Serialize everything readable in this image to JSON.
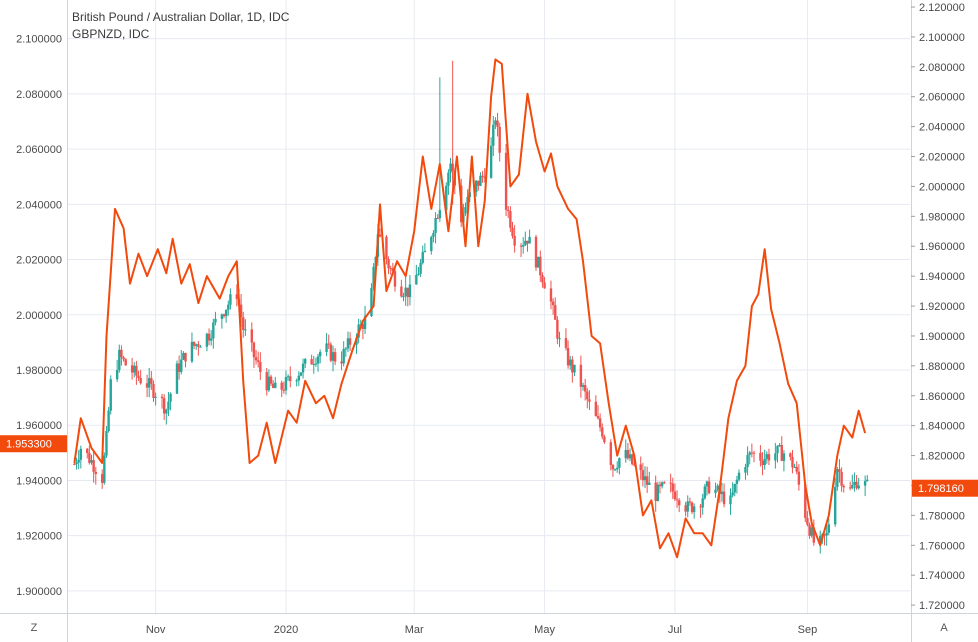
{
  "header": {
    "title": "British Pound / Australian Dollar, 1D, IDC",
    "subtitle": "GBPNZD, IDC"
  },
  "corner_buttons": {
    "left": "Z",
    "right": "A"
  },
  "colors": {
    "candle_up": "#26a69a",
    "candle_down": "#ef5350",
    "compare_line": "#f24a0d",
    "grid": "#e6eaf0",
    "axis_text": "#4a4a4a",
    "badge_left": "#f24a0d",
    "badge_right": "#f24a0d"
  },
  "chart_data": {
    "type": "line",
    "title": "British Pound / Australian Dollar, 1D, IDC",
    "time_labels": [
      "Nov",
      "2020",
      "Mar",
      "May",
      "Jul",
      "Sep"
    ],
    "left_axis": {
      "ticks": [
        "1.900000",
        "1.920000",
        "1.940000",
        "1.960000",
        "1.980000",
        "2.000000",
        "2.020000",
        "2.040000",
        "2.060000",
        "2.080000",
        "2.100000"
      ],
      "range": [
        1.892,
        2.114
      ]
    },
    "right_axis": {
      "ticks": [
        "1.720000",
        "1.740000",
        "1.760000",
        "1.780000",
        "1.800000",
        "1.820000",
        "1.840000",
        "1.860000",
        "1.880000",
        "1.900000",
        "1.920000",
        "1.940000",
        "1.960000",
        "1.980000",
        "2.000000",
        "2.020000",
        "2.040000",
        "2.060000",
        "2.080000",
        "2.100000",
        "2.120000"
      ],
      "range": [
        1.7147,
        2.1247
      ]
    },
    "last_price_left": {
      "label": "1.953300",
      "value": 1.9533
    },
    "last_price_right": {
      "label": "1.798160",
      "value": 1.79816
    },
    "series": [
      {
        "name": "British Pound / Australian Dollar",
        "style": "candles",
        "axis": "left",
        "close_path": [
          [
            "2019-09-24",
            1.946
          ],
          [
            "2019-09-27",
            1.952
          ],
          [
            "2019-10-02",
            1.947
          ],
          [
            "2019-10-07",
            1.941
          ],
          [
            "2019-10-09",
            1.955
          ],
          [
            "2019-10-11",
            1.975
          ],
          [
            "2019-10-15",
            1.985
          ],
          [
            "2019-10-18",
            1.982
          ],
          [
            "2019-10-23",
            1.978
          ],
          [
            "2019-10-28",
            1.975
          ],
          [
            "2019-11-01",
            1.972
          ],
          [
            "2019-11-06",
            1.966
          ],
          [
            "2019-11-11",
            1.98
          ],
          [
            "2019-11-16",
            1.987
          ],
          [
            "2019-11-21",
            1.99
          ],
          [
            "2019-11-26",
            1.993
          ],
          [
            "2019-12-01",
            2.0
          ],
          [
            "2019-12-06",
            2.005
          ],
          [
            "2019-12-09",
            2.008
          ],
          [
            "2019-12-12",
            1.995
          ],
          [
            "2019-12-17",
            1.985
          ],
          [
            "2019-12-22",
            1.976
          ],
          [
            "2019-12-28",
            1.972
          ],
          [
            "2020-01-05",
            1.978
          ],
          [
            "2020-01-12",
            1.983
          ],
          [
            "2020-01-19",
            1.988
          ],
          [
            "2020-01-26",
            1.983
          ],
          [
            "2020-02-02",
            1.993
          ],
          [
            "2020-02-09",
            2.0
          ],
          [
            "2020-02-13",
            2.03
          ],
          [
            "2020-02-18",
            2.018
          ],
          [
            "2020-02-23",
            2.01
          ],
          [
            "2020-02-28",
            2.008
          ],
          [
            "2020-03-06",
            2.022
          ],
          [
            "2020-03-13",
            2.04
          ],
          [
            "2020-03-18",
            2.055
          ],
          [
            "2020-03-23",
            2.035
          ],
          [
            "2020-03-28",
            2.045
          ],
          [
            "2020-04-02",
            2.05
          ],
          [
            "2020-04-06",
            2.06
          ],
          [
            "2020-04-08",
            2.072
          ],
          [
            "2020-04-13",
            2.04
          ],
          [
            "2020-04-18",
            2.025
          ],
          [
            "2020-04-23",
            2.028
          ],
          [
            "2020-04-28",
            2.018
          ],
          [
            "2020-05-03",
            2.008
          ],
          [
            "2020-05-08",
            1.99
          ],
          [
            "2020-05-13",
            1.982
          ],
          [
            "2020-05-18",
            1.975
          ],
          [
            "2020-05-23",
            1.965
          ],
          [
            "2020-05-28",
            1.958
          ],
          [
            "2020-06-02",
            1.945
          ],
          [
            "2020-06-07",
            1.95
          ],
          [
            "2020-06-12",
            1.945
          ],
          [
            "2020-06-17",
            1.94
          ],
          [
            "2020-06-22",
            1.935
          ],
          [
            "2020-06-27",
            1.938
          ],
          [
            "2020-07-02",
            1.935
          ],
          [
            "2020-07-07",
            1.93
          ],
          [
            "2020-07-12",
            1.932
          ],
          [
            "2020-07-17",
            1.938
          ],
          [
            "2020-07-22",
            1.935
          ],
          [
            "2020-07-27",
            1.932
          ],
          [
            "2020-08-01",
            1.945
          ],
          [
            "2020-08-06",
            1.95
          ],
          [
            "2020-08-11",
            1.948
          ],
          [
            "2020-08-16",
            1.95
          ],
          [
            "2020-08-21",
            1.95
          ],
          [
            "2020-08-26",
            1.945
          ],
          [
            "2020-08-31",
            1.928
          ],
          [
            "2020-09-05",
            1.915
          ],
          [
            "2020-09-10",
            1.92
          ],
          [
            "2020-09-15",
            1.945
          ],
          [
            "2020-09-20",
            1.935
          ],
          [
            "2020-09-24",
            1.94
          ],
          [
            "2020-09-29",
            1.938
          ]
        ]
      },
      {
        "name": "GBPNZD, IDC",
        "style": "line",
        "axis": "right",
        "points": [
          [
            "2019-09-24",
            1.815
          ],
          [
            "2019-09-27",
            1.845
          ],
          [
            "2019-10-02",
            1.825
          ],
          [
            "2019-10-07",
            1.815
          ],
          [
            "2019-10-09",
            1.9
          ],
          [
            "2019-10-13",
            1.985
          ],
          [
            "2019-10-17",
            1.972
          ],
          [
            "2019-10-20",
            1.935
          ],
          [
            "2019-10-24",
            1.955
          ],
          [
            "2019-10-28",
            1.94
          ],
          [
            "2019-11-02",
            1.958
          ],
          [
            "2019-11-06",
            1.942
          ],
          [
            "2019-11-09",
            1.965
          ],
          [
            "2019-11-13",
            1.935
          ],
          [
            "2019-11-17",
            1.948
          ],
          [
            "2019-11-21",
            1.922
          ],
          [
            "2019-11-25",
            1.94
          ],
          [
            "2019-12-01",
            1.925
          ],
          [
            "2019-12-05",
            1.94
          ],
          [
            "2019-12-09",
            1.95
          ],
          [
            "2019-12-12",
            1.87
          ],
          [
            "2019-12-15",
            1.815
          ],
          [
            "2019-12-19",
            1.82
          ],
          [
            "2019-12-23",
            1.842
          ],
          [
            "2019-12-27",
            1.815
          ],
          [
            "2020-01-02",
            1.85
          ],
          [
            "2020-01-06",
            1.842
          ],
          [
            "2020-01-10",
            1.87
          ],
          [
            "2020-01-15",
            1.855
          ],
          [
            "2020-01-19",
            1.86
          ],
          [
            "2020-01-23",
            1.845
          ],
          [
            "2020-01-27",
            1.868
          ],
          [
            "2020-02-01",
            1.89
          ],
          [
            "2020-02-06",
            1.91
          ],
          [
            "2020-02-11",
            1.92
          ],
          [
            "2020-02-14",
            1.988
          ],
          [
            "2020-02-17",
            1.93
          ],
          [
            "2020-02-22",
            1.95
          ],
          [
            "2020-02-26",
            1.94
          ],
          [
            "2020-03-01",
            1.97
          ],
          [
            "2020-03-05",
            2.02
          ],
          [
            "2020-03-09",
            1.985
          ],
          [
            "2020-03-13",
            2.015
          ],
          [
            "2020-03-17",
            1.97
          ],
          [
            "2020-03-21",
            2.02
          ],
          [
            "2020-03-25",
            1.96
          ],
          [
            "2020-03-28",
            2.02
          ],
          [
            "2020-03-31",
            1.96
          ],
          [
            "2020-04-03",
            1.99
          ],
          [
            "2020-04-06",
            2.06
          ],
          [
            "2020-04-08",
            2.085
          ],
          [
            "2020-04-11",
            2.082
          ],
          [
            "2020-04-15",
            2.0
          ],
          [
            "2020-04-19",
            2.008
          ],
          [
            "2020-04-23",
            2.062
          ],
          [
            "2020-04-27",
            2.03
          ],
          [
            "2020-05-01",
            2.01
          ],
          [
            "2020-05-04",
            2.022
          ],
          [
            "2020-05-07",
            2.0
          ],
          [
            "2020-05-12",
            1.985
          ],
          [
            "2020-05-16",
            1.978
          ],
          [
            "2020-05-19",
            1.95
          ],
          [
            "2020-05-23",
            1.9
          ],
          [
            "2020-05-27",
            1.895
          ],
          [
            "2020-05-31",
            1.855
          ],
          [
            "2020-06-04",
            1.82
          ],
          [
            "2020-06-08",
            1.84
          ],
          [
            "2020-06-12",
            1.82
          ],
          [
            "2020-06-16",
            1.78
          ],
          [
            "2020-06-20",
            1.79
          ],
          [
            "2020-06-24",
            1.758
          ],
          [
            "2020-06-28",
            1.768
          ],
          [
            "2020-07-02",
            1.752
          ],
          [
            "2020-07-06",
            1.778
          ],
          [
            "2020-07-10",
            1.768
          ],
          [
            "2020-07-14",
            1.768
          ],
          [
            "2020-07-18",
            1.76
          ],
          [
            "2020-07-22",
            1.798
          ],
          [
            "2020-07-26",
            1.845
          ],
          [
            "2020-07-30",
            1.87
          ],
          [
            "2020-08-03",
            1.88
          ],
          [
            "2020-08-06",
            1.92
          ],
          [
            "2020-08-09",
            1.928
          ],
          [
            "2020-08-12",
            1.958
          ],
          [
            "2020-08-15",
            1.918
          ],
          [
            "2020-08-19",
            1.895
          ],
          [
            "2020-08-23",
            1.868
          ],
          [
            "2020-08-27",
            1.855
          ],
          [
            "2020-08-31",
            1.8
          ],
          [
            "2020-09-03",
            1.775
          ],
          [
            "2020-09-07",
            1.76
          ],
          [
            "2020-09-11",
            1.78
          ],
          [
            "2020-09-15",
            1.82
          ],
          [
            "2020-09-18",
            1.84
          ],
          [
            "2020-09-22",
            1.832
          ],
          [
            "2020-09-25",
            1.85
          ],
          [
            "2020-09-28",
            1.835
          ]
        ]
      }
    ]
  }
}
